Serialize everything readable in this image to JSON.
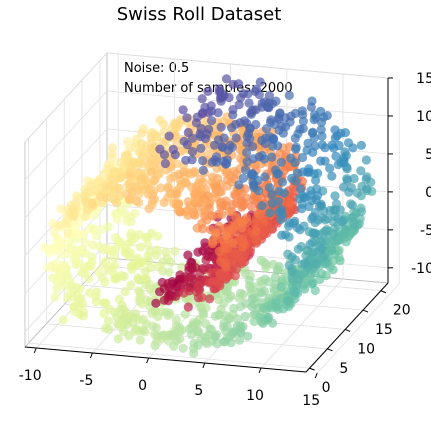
{
  "chart_data": {
    "type": "scatter",
    "title": "Swiss Roll Dataset",
    "annotations": [
      "Noise: 0.5",
      "Number of samples: 2000"
    ],
    "n_samples": 2000,
    "noise": 0.5,
    "x_ticks": [
      -10,
      -5,
      0,
      5,
      10,
      15
    ],
    "y_ticks": [
      0,
      5,
      10,
      15,
      20
    ],
    "z_ticks": [
      15,
      10,
      5,
      0,
      -5,
      -10
    ],
    "xlim": [
      -11,
      14
    ],
    "ylim": [
      -1,
      22
    ],
    "zlim": [
      -12,
      15
    ],
    "colormap": "Spectral",
    "marker_alpha": 0.7,
    "grid": true
  }
}
